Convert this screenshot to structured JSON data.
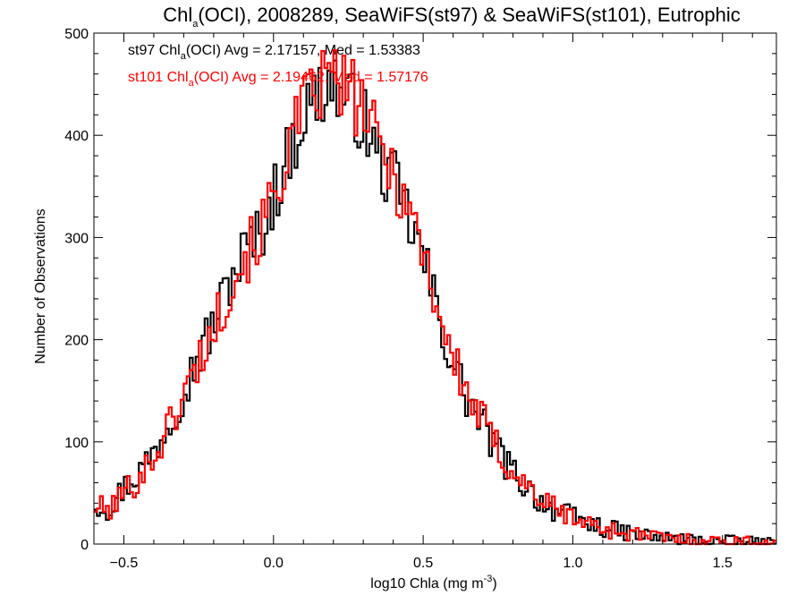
{
  "chart_data": {
    "type": "histogram",
    "title": {
      "prefix": "Chl",
      "sub": "a",
      "rest": "(OCI), 2008289, SeaWiFS(st97) & SeaWiFS(st101), Eutrophic"
    },
    "xlabel": {
      "main": "log10 Chla (mg m",
      "sup": "-3",
      "close": ")"
    },
    "ylabel": "Number of Observations",
    "xlim": [
      -0.6,
      1.68
    ],
    "ylim": [
      0,
      500
    ],
    "xticks": [
      -0.5,
      0.0,
      0.5,
      1.0,
      1.5
    ],
    "xtick_labels": [
      "−0.5",
      "0.0",
      "0.5",
      "1.0",
      "1.5"
    ],
    "yticks": [
      0,
      100,
      200,
      300,
      400,
      500
    ],
    "ytick_labels": [
      "0",
      "100",
      "200",
      "300",
      "400",
      "500"
    ],
    "bin_width": 0.01,
    "series": [
      {
        "name": "st97",
        "color": "#000000",
        "legend": {
          "pre": "st97 Chl",
          "sub": "a",
          "post": "(OCI) Avg = 2.17157, Med = 1.53383"
        },
        "anchors": [
          [
            -0.6,
            40
          ],
          [
            -0.55,
            35
          ],
          [
            -0.5,
            55
          ],
          [
            -0.45,
            70
          ],
          [
            -0.4,
            90
          ],
          [
            -0.35,
            120
          ],
          [
            -0.3,
            150
          ],
          [
            -0.25,
            185
          ],
          [
            -0.2,
            215
          ],
          [
            -0.15,
            255
          ],
          [
            -0.1,
            285
          ],
          [
            -0.05,
            300
          ],
          [
            0.0,
            340
          ],
          [
            0.05,
            380
          ],
          [
            0.1,
            420
          ],
          [
            0.15,
            440
          ],
          [
            0.18,
            450
          ],
          [
            0.2,
            455
          ],
          [
            0.22,
            440
          ],
          [
            0.25,
            430
          ],
          [
            0.28,
            425
          ],
          [
            0.3,
            415
          ],
          [
            0.35,
            375
          ],
          [
            0.4,
            355
          ],
          [
            0.45,
            320
          ],
          [
            0.5,
            280
          ],
          [
            0.55,
            225
          ],
          [
            0.6,
            175
          ],
          [
            0.65,
            140
          ],
          [
            0.7,
            115
          ],
          [
            0.75,
            90
          ],
          [
            0.8,
            70
          ],
          [
            0.85,
            55
          ],
          [
            0.9,
            40
          ],
          [
            0.95,
            32
          ],
          [
            1.0,
            26
          ],
          [
            1.05,
            20
          ],
          [
            1.1,
            16
          ],
          [
            1.15,
            13
          ],
          [
            1.2,
            10
          ],
          [
            1.25,
            8
          ],
          [
            1.3,
            6
          ],
          [
            1.35,
            5
          ],
          [
            1.4,
            4
          ],
          [
            1.5,
            3
          ],
          [
            1.6,
            2
          ],
          [
            1.68,
            1
          ]
        ],
        "seed": 97
      },
      {
        "name": "st101",
        "color": "#ff0000",
        "legend": {
          "pre": "st101 Chl",
          "sub": "a",
          "post": "(OCI) Avg = 2.19462, Med = 1.57176"
        },
        "anchors": [
          [
            -0.6,
            38
          ],
          [
            -0.55,
            32
          ],
          [
            -0.5,
            50
          ],
          [
            -0.45,
            65
          ],
          [
            -0.4,
            85
          ],
          [
            -0.35,
            115
          ],
          [
            -0.3,
            145
          ],
          [
            -0.25,
            180
          ],
          [
            -0.2,
            210
          ],
          [
            -0.15,
            250
          ],
          [
            -0.1,
            280
          ],
          [
            -0.05,
            300
          ],
          [
            0.0,
            340
          ],
          [
            0.05,
            385
          ],
          [
            0.1,
            425
          ],
          [
            0.15,
            445
          ],
          [
            0.18,
            455
          ],
          [
            0.2,
            460
          ],
          [
            0.22,
            450
          ],
          [
            0.25,
            440
          ],
          [
            0.28,
            435
          ],
          [
            0.3,
            425
          ],
          [
            0.35,
            390
          ],
          [
            0.4,
            365
          ],
          [
            0.45,
            330
          ],
          [
            0.5,
            290
          ],
          [
            0.55,
            230
          ],
          [
            0.6,
            180
          ],
          [
            0.65,
            145
          ],
          [
            0.7,
            120
          ],
          [
            0.75,
            92
          ],
          [
            0.8,
            72
          ],
          [
            0.85,
            56
          ],
          [
            0.9,
            42
          ],
          [
            0.95,
            33
          ],
          [
            1.0,
            26
          ],
          [
            1.05,
            20
          ],
          [
            1.1,
            16
          ],
          [
            1.15,
            12
          ],
          [
            1.2,
            10
          ],
          [
            1.25,
            8
          ],
          [
            1.3,
            6
          ],
          [
            1.35,
            5
          ],
          [
            1.4,
            4
          ],
          [
            1.5,
            3
          ],
          [
            1.6,
            2
          ],
          [
            1.68,
            1
          ]
        ],
        "seed": 101
      }
    ]
  }
}
